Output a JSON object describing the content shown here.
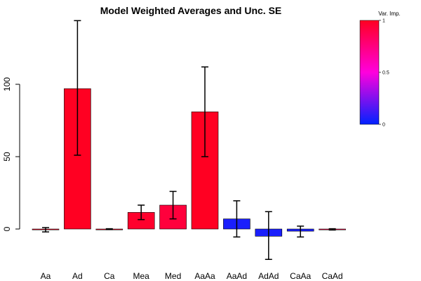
{
  "chart_data": {
    "type": "bar",
    "title": "Model Weighted Averages and Unc. SE",
    "xlabel": "",
    "ylabel": "",
    "categories": [
      "Aa",
      "Ad",
      "Ca",
      "Mea",
      "Med",
      "AaAa",
      "AaAd",
      "AdAd",
      "CaAa",
      "CaAd"
    ],
    "values": [
      -0.5,
      97,
      -0.1,
      11.5,
      16.5,
      81,
      7,
      -5,
      -1.5,
      -0.2
    ],
    "error_low": [
      -2,
      51,
      -0.4,
      6.5,
      7,
      50,
      -5.5,
      -21,
      -5.5,
      -0.7
    ],
    "error_high": [
      1,
      144,
      0.2,
      16.5,
      26,
      112,
      19.5,
      12,
      2,
      0.2
    ],
    "importance": [
      1.0,
      1.0,
      1.0,
      0.97,
      0.93,
      1.0,
      0.05,
      0.05,
      0.05,
      0.9
    ],
    "yticks": [
      0,
      50,
      100
    ],
    "ylim": [
      -21,
      144
    ],
    "legend": {
      "title": "Var. Imp.",
      "ticks": [
        "0",
        "0.5",
        "1"
      ],
      "colors": [
        "#0022ff",
        "#ff00dd",
        "#ff0022"
      ],
      "placement": "top-right"
    }
  }
}
